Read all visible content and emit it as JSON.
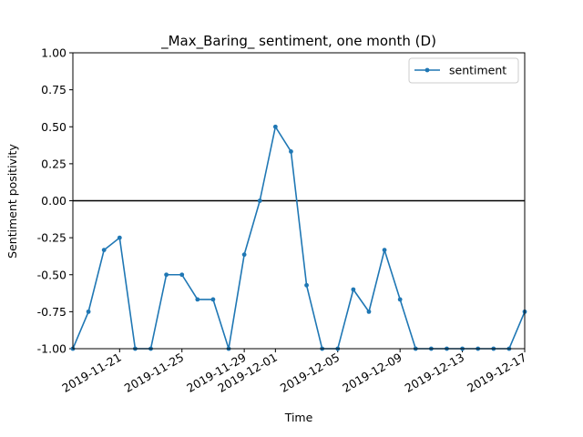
{
  "chart_data": {
    "type": "line",
    "title": "_Max_Baring_ sentiment, one month (D)",
    "xlabel": "Time",
    "ylabel": "Sentiment positivity",
    "xlim": [
      "2019-11-18",
      "2019-12-17"
    ],
    "ylim": [
      -1.0,
      1.0
    ],
    "yticks": [
      "1.00",
      "0.75",
      "0.50",
      "0.25",
      "0.00",
      "-0.25",
      "-0.50",
      "-0.75",
      "-1.00"
    ],
    "xticks": [
      "2019-11-21",
      "2019-11-25",
      "2019-11-29",
      "2019-12-01",
      "2019-12-05",
      "2019-12-09",
      "2019-12-13",
      "2019-12-17"
    ],
    "grid": false,
    "reference_line": 0.0,
    "legend": "top-right",
    "series": [
      {
        "name": "sentiment",
        "color": "#1f77b4",
        "x": [
          "2019-11-18",
          "2019-11-19",
          "2019-11-20",
          "2019-11-21",
          "2019-11-22",
          "2019-11-23",
          "2019-11-24",
          "2019-11-25",
          "2019-11-26",
          "2019-11-27",
          "2019-11-28",
          "2019-11-29",
          "2019-11-30",
          "2019-12-01",
          "2019-12-02",
          "2019-12-03",
          "2019-12-04",
          "2019-12-05",
          "2019-12-06",
          "2019-12-07",
          "2019-12-08",
          "2019-12-09",
          "2019-12-10",
          "2019-12-11",
          "2019-12-12",
          "2019-12-13",
          "2019-12-14",
          "2019-12-15",
          "2019-12-16",
          "2019-12-17"
        ],
        "values": [
          -1.0,
          -0.75,
          -0.333,
          -0.25,
          -1.0,
          -1.0,
          -0.5,
          -0.5,
          -0.667,
          -0.667,
          -1.0,
          -0.364,
          0.0,
          0.5,
          0.333,
          -0.571,
          -1.0,
          -1.0,
          -0.6,
          -0.75,
          -0.333,
          -0.667,
          -1.0,
          -1.0,
          -1.0,
          -1.0,
          -1.0,
          -1.0,
          -1.0,
          -0.75
        ]
      }
    ]
  }
}
